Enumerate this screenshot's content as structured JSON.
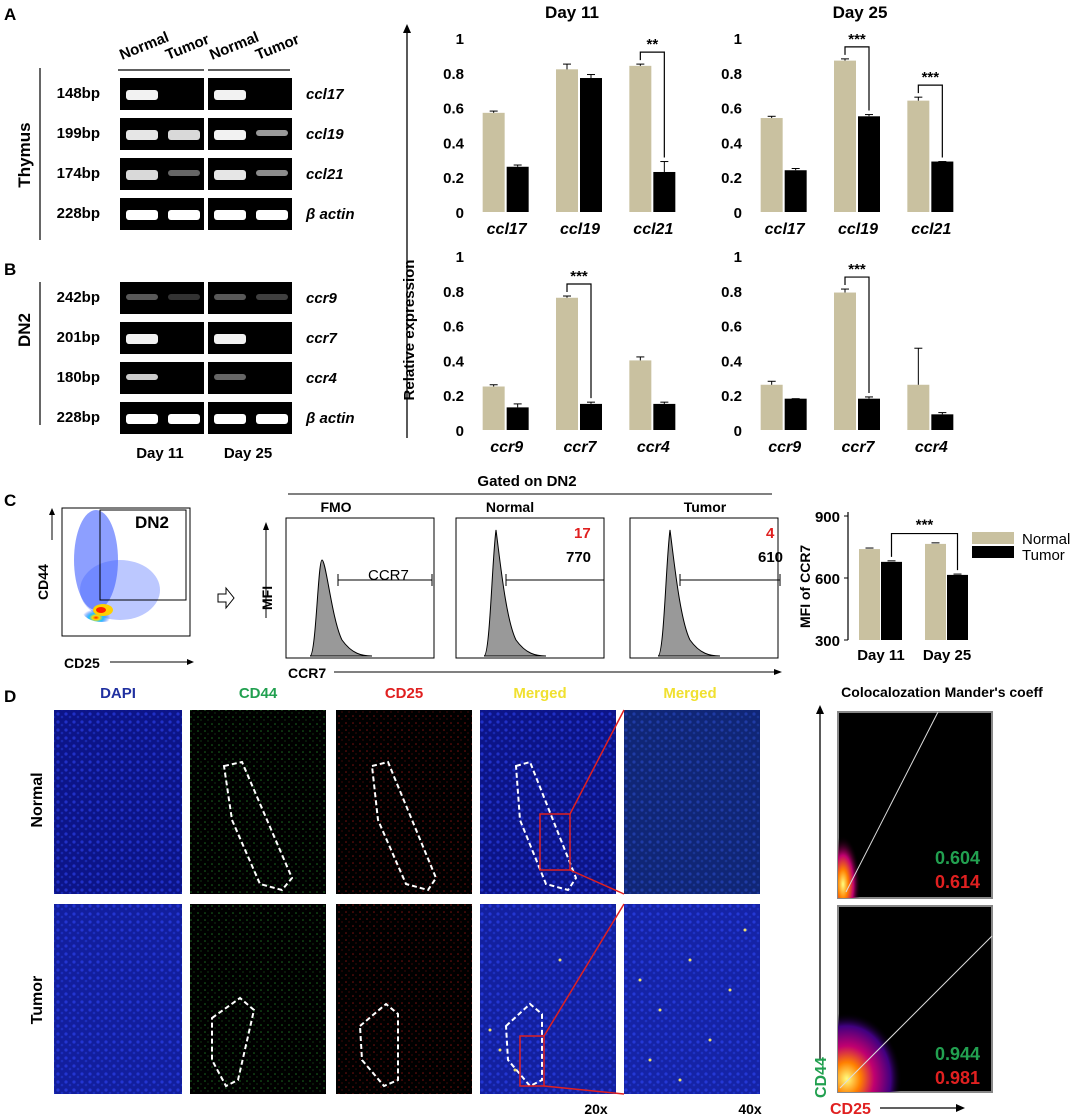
{
  "colors": {
    "normal": "#c9c1a0",
    "tumor": "#000000",
    "red": "#e02020",
    "green": "#22a050",
    "yellow": "#f0e030",
    "blue": "#2030a0"
  },
  "panels": {
    "A": "A",
    "B": "B",
    "C": "C",
    "D": "D"
  },
  "gel": {
    "header": [
      "Normal",
      "Tumor",
      "Normal",
      "Tumor"
    ],
    "thymus_label": "Thymus",
    "dn2_label": "DN2",
    "thymus_rows": [
      {
        "bp": "148bp",
        "gene": "ccl17"
      },
      {
        "bp": "199bp",
        "gene": "ccl19"
      },
      {
        "bp": "174bp",
        "gene": "ccl21"
      },
      {
        "bp": "228bp",
        "gene": "β actin"
      }
    ],
    "dn2_rows": [
      {
        "bp": "242bp",
        "gene": "ccr9"
      },
      {
        "bp": "201bp",
        "gene": "ccr7"
      },
      {
        "bp": "180bp",
        "gene": "ccr4"
      },
      {
        "bp": "228bp",
        "gene": "β actin"
      }
    ],
    "day_labels": [
      "Day 11",
      "Day 25"
    ]
  },
  "chart_data": [
    {
      "type": "bar",
      "title": "Day 11",
      "categories": [
        "ccl17",
        "ccl19",
        "ccl21"
      ],
      "ylim": [
        0,
        1
      ],
      "yticks": [
        "0",
        "0.2",
        "0.4",
        "0.6",
        "0.8",
        "1"
      ],
      "series": [
        {
          "values": [
            0.57,
            0.82,
            0.84
          ],
          "err": [
            0.01,
            0.03,
            0.01
          ]
        },
        {
          "values": [
            0.26,
            0.77,
            0.23
          ],
          "err": [
            0.01,
            0.02,
            0.06
          ]
        }
      ],
      "sig": [
        {
          "cat": 2,
          "label": "**"
        }
      ]
    },
    {
      "type": "bar",
      "title": "Day 25",
      "categories": [
        "ccl17",
        "ccl19",
        "ccl21"
      ],
      "ylim": [
        0,
        1
      ],
      "yticks": [
        "0",
        "0.2",
        "0.4",
        "0.6",
        "0.8",
        "1"
      ],
      "series": [
        {
          "values": [
            0.54,
            0.87,
            0.64
          ],
          "err": [
            0.01,
            0.01,
            0.02
          ]
        },
        {
          "values": [
            0.24,
            0.55,
            0.29
          ],
          "err": [
            0.01,
            0.01,
            0.0
          ]
        }
      ],
      "sig": [
        {
          "cat": 1,
          "label": "***"
        },
        {
          "cat": 2,
          "label": "***"
        }
      ]
    },
    {
      "type": "bar",
      "categories": [
        "ccr9",
        "ccr7",
        "ccr4"
      ],
      "ylim": [
        0,
        1
      ],
      "yticks": [
        "0",
        "0.2",
        "0.4",
        "0.6",
        "0.8",
        "1"
      ],
      "series": [
        {
          "values": [
            0.25,
            0.76,
            0.4
          ],
          "err": [
            0.01,
            0.01,
            0.02
          ]
        },
        {
          "values": [
            0.13,
            0.15,
            0.15
          ],
          "err": [
            0.02,
            0.01,
            0.01
          ]
        }
      ],
      "sig": [
        {
          "cat": 1,
          "label": "***"
        }
      ]
    },
    {
      "type": "bar",
      "categories": [
        "ccr9",
        "ccr7",
        "ccr4"
      ],
      "ylim": [
        0,
        1
      ],
      "yticks": [
        "0",
        "0.2",
        "0.4",
        "0.6",
        "0.8",
        "1"
      ],
      "series": [
        {
          "values": [
            0.26,
            0.79,
            0.26
          ],
          "err": [
            0.02,
            0.02,
            0.21
          ]
        },
        {
          "values": [
            0.18,
            0.18,
            0.09
          ],
          "err": [
            0.0,
            0.01,
            0.01
          ]
        }
      ],
      "sig": [
        {
          "cat": 1,
          "label": "***"
        }
      ]
    },
    {
      "type": "bar",
      "categories": [
        "Day 11",
        "Day 25"
      ],
      "ylim": [
        300,
        900
      ],
      "yticks": [
        "300",
        "600",
        "900"
      ],
      "ylabel": "MFI of CCR7",
      "series": [
        {
          "name": "Normal",
          "values": [
            740,
            765
          ],
          "err": [
            5,
            5
          ]
        },
        {
          "name": "Tumor",
          "values": [
            678,
            615
          ],
          "err": [
            5,
            4
          ]
        }
      ],
      "sig_between": "***"
    }
  ],
  "bar_axis_label": "Relative expression",
  "flow": {
    "gate_label": "DN2",
    "cd44": "CD44",
    "cd25": "CD25",
    "gated_title": "Gated on DN2",
    "hist_titles": [
      "FMO",
      "Normal",
      "Tumor"
    ],
    "ccr7_gate": "CCR7",
    "normal_red": "17",
    "normal_black": "770",
    "tumor_red": "4",
    "tumor_black": "610",
    "mfi": "MFI",
    "ccr7_axis": "CCR7",
    "legend": [
      "Normal",
      "Tumor"
    ]
  },
  "micro": {
    "col_titles": [
      "DAPI",
      "CD44",
      "CD25",
      "Merged",
      "Merged"
    ],
    "row_titles": [
      "Normal",
      "Tumor"
    ],
    "mag": [
      "20x",
      "40x"
    ],
    "coloc_title": "Colocalozation Mander's coeff",
    "normal_green": "0.604",
    "normal_red": "0.614",
    "tumor_green": "0.944",
    "tumor_red": "0.981",
    "cd44": "CD44",
    "cd25": "CD25"
  }
}
